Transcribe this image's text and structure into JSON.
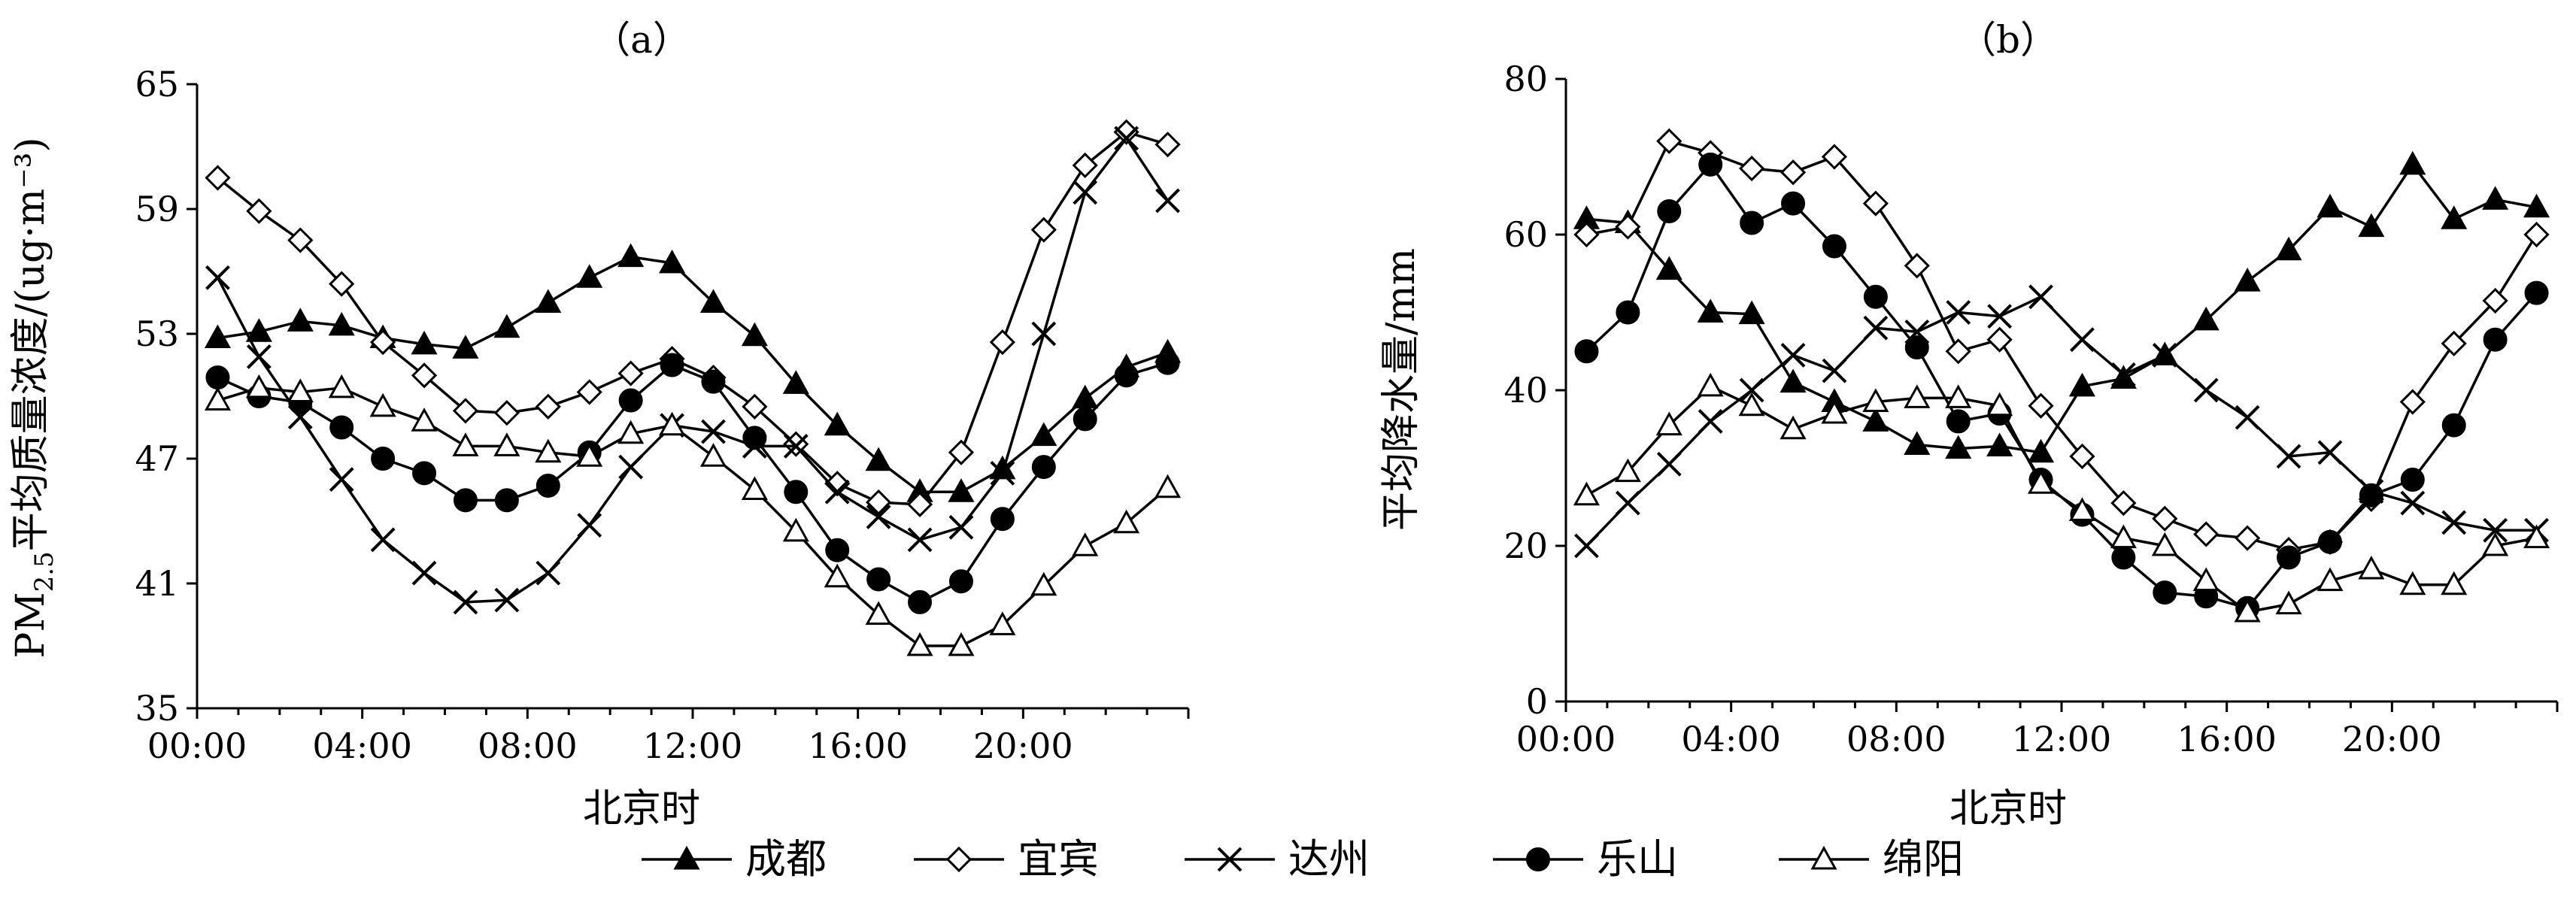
{
  "figure": {
    "panels": [
      "（a）",
      "（b）"
    ],
    "legend": [
      "成都",
      "宜宾",
      "达州",
      "乐山",
      "绵阳"
    ]
  },
  "styles": {
    "line_color": "#000000",
    "series_markers": {
      "成都": "filled-triangle",
      "宜宾": "open-diamond",
      "达州": "x-cross",
      "乐山": "filled-circle",
      "绵阳": "open-triangle"
    }
  },
  "chart_data": [
    {
      "type": "line",
      "panel": "（a）",
      "xlabel": "北京时",
      "ylabel": "PM2.5平均质量浓度/(ug·m⁻³)",
      "ylim": [
        35,
        65
      ],
      "yticks": [
        "35",
        "41",
        "47",
        "53",
        "59",
        "65"
      ],
      "xlim": [
        0,
        24
      ],
      "xtick_labels": [
        "00:00",
        "04:00",
        "08:00",
        "12:00",
        "16:00",
        "20:00"
      ],
      "x": [
        0.5,
        1.5,
        2.5,
        3.5,
        4.5,
        5.5,
        6.5,
        7.5,
        8.5,
        9.5,
        10.5,
        11.5,
        12.5,
        13.5,
        14.5,
        15.5,
        16.5,
        17.5,
        18.5,
        19.5,
        20.5,
        21.5,
        22.5,
        23.5
      ],
      "series": [
        {
          "name": "成都",
          "values": [
            52.8,
            53.1,
            53.6,
            53.4,
            52.8,
            52.5,
            52.3,
            53.3,
            54.5,
            55.7,
            56.7,
            56.4,
            54.5,
            52.9,
            50.6,
            48.6,
            46.9,
            45.4,
            45.4,
            46.5,
            48.1,
            49.9,
            51.4,
            52.1
          ]
        },
        {
          "name": "宜宾",
          "values": [
            60.5,
            58.9,
            57.5,
            55.4,
            52.6,
            51.0,
            49.3,
            49.2,
            49.5,
            50.2,
            51.1,
            51.8,
            50.9,
            49.5,
            47.7,
            45.8,
            44.9,
            44.8,
            47.3,
            52.6,
            58.0,
            61.1,
            62.7,
            62.1
          ]
        },
        {
          "name": "达州",
          "values": [
            55.7,
            51.9,
            49.0,
            46.0,
            43.1,
            41.5,
            40.1,
            40.2,
            41.5,
            43.8,
            46.6,
            48.6,
            48.3,
            47.6,
            47.6,
            45.4,
            44.2,
            43.1,
            43.7,
            46.3,
            53.0,
            59.8,
            62.4,
            59.4
          ]
        },
        {
          "name": "乐山",
          "values": [
            50.9,
            50.0,
            49.7,
            48.5,
            47.0,
            46.3,
            45.0,
            45.0,
            45.7,
            47.3,
            49.8,
            51.5,
            50.7,
            48.0,
            45.4,
            42.6,
            41.2,
            40.1,
            41.1,
            44.1,
            46.6,
            48.9,
            51.0,
            51.6
          ]
        },
        {
          "name": "绵阳",
          "values": [
            49.8,
            50.4,
            50.2,
            50.4,
            49.5,
            48.8,
            47.6,
            47.6,
            47.3,
            47.1,
            48.2,
            48.6,
            47.1,
            45.5,
            43.5,
            41.3,
            39.5,
            38.0,
            38.0,
            39.0,
            40.9,
            42.8,
            43.9,
            45.6
          ]
        }
      ]
    },
    {
      "type": "line",
      "panel": "（b）",
      "xlabel": "北京时",
      "ylabel": "平均降水量/mm",
      "ylim": [
        0,
        80
      ],
      "yticks": [
        "0",
        "20",
        "40",
        "60",
        "80"
      ],
      "xlim": [
        0,
        24
      ],
      "xtick_labels": [
        "00:00",
        "04:00",
        "08:00",
        "12:00",
        "16:00",
        "20:00"
      ],
      "x": [
        0.5,
        1.5,
        2.5,
        3.5,
        4.5,
        5.5,
        6.5,
        7.5,
        8.5,
        9.5,
        10.5,
        11.5,
        12.5,
        13.5,
        14.5,
        15.5,
        16.5,
        17.5,
        18.5,
        19.5,
        20.5,
        21.5,
        22.5,
        23.5
      ],
      "series": [
        {
          "name": "成都",
          "values": [
            62.0,
            61.5,
            55.5,
            50.0,
            49.8,
            41.0,
            38.5,
            36.0,
            33.0,
            32.5,
            32.8,
            32.0,
            40.5,
            41.5,
            44.5,
            49.0,
            54.0,
            58.0,
            63.5,
            61.0,
            69.0,
            62.0,
            64.5,
            63.5
          ]
        },
        {
          "name": "宜宾",
          "values": [
            60.0,
            61.0,
            72.0,
            70.5,
            68.5,
            68.0,
            70.0,
            64.0,
            56.0,
            45.0,
            46.5,
            38.0,
            31.5,
            25.5,
            23.5,
            21.5,
            21.0,
            19.5,
            20.5,
            26.0,
            38.5,
            46.0,
            51.5,
            60.0
          ]
        },
        {
          "name": "达州",
          "values": [
            20.0,
            25.5,
            30.5,
            36.0,
            40.0,
            44.5,
            42.5,
            48.0,
            47.5,
            50.0,
            49.5,
            52.0,
            46.5,
            42.0,
            44.5,
            40.0,
            36.5,
            31.5,
            32.0,
            27.0,
            25.5,
            23.0,
            22.0,
            22.0
          ]
        },
        {
          "name": "乐山",
          "values": [
            45.0,
            50.0,
            63.0,
            69.0,
            61.5,
            64.0,
            58.5,
            52.0,
            45.5,
            36.0,
            37.0,
            28.5,
            24.0,
            18.5,
            14.0,
            13.5,
            12.0,
            18.5,
            20.5,
            26.5,
            28.5,
            35.5,
            46.5,
            52.5
          ]
        },
        {
          "name": "绵阳",
          "values": [
            26.5,
            29.5,
            35.5,
            40.5,
            38.0,
            35.0,
            37.0,
            38.5,
            39.0,
            39.0,
            38.0,
            28.0,
            24.5,
            21.0,
            20.0,
            15.5,
            11.5,
            12.5,
            15.5,
            17.0,
            15.0,
            15.0,
            20.0,
            21.0
          ]
        }
      ]
    }
  ]
}
